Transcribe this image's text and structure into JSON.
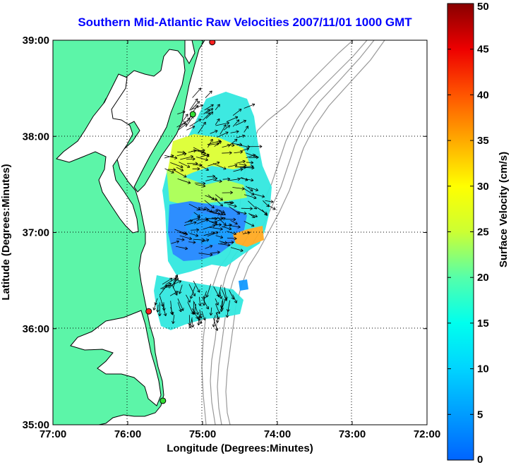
{
  "title": "Southern Mid-Atlantic Raw Velocities 2007/11/01 1000 GMT",
  "map": {
    "x_label": "Longitude (Degrees:Minutes)",
    "y_label": "Latitude (Degrees:Minutes)",
    "lon_range": [
      -77,
      -72
    ],
    "lat_range": [
      35,
      39
    ],
    "x_ticks": [
      {
        "value": -77,
        "label": "77:00"
      },
      {
        "value": -76,
        "label": "76:00"
      },
      {
        "value": -75,
        "label": "75:00"
      },
      {
        "value": -74,
        "label": "74:00"
      },
      {
        "value": -73,
        "label": "73:00"
      },
      {
        "value": -72,
        "label": "72:00"
      }
    ],
    "y_ticks": [
      {
        "value": 39,
        "label": "39:00"
      },
      {
        "value": 38,
        "label": "38:00"
      },
      {
        "value": 37,
        "label": "37:00"
      },
      {
        "value": 36,
        "label": "36:00"
      },
      {
        "value": 35,
        "label": "35:00"
      }
    ],
    "grid": "dotted",
    "land_color": "#5cf5a8",
    "coast_color": "#000000",
    "bathymetry_color": "#999999",
    "stations": [
      {
        "lon": -74.87,
        "lat": 38.98,
        "color": "#ff2020"
      },
      {
        "lon": -75.13,
        "lat": 38.23,
        "color": "#33dd33"
      },
      {
        "lon": -75.72,
        "lat": 36.18,
        "color": "#ff2020"
      },
      {
        "lon": -75.53,
        "lat": 35.25,
        "color": "#33dd33"
      }
    ]
  },
  "colorbar": {
    "label": "Surface Velocity (cm/s)",
    "min": 0,
    "max": 50,
    "ticks": [
      {
        "value": 50,
        "label": "50"
      },
      {
        "value": 45,
        "label": "45"
      },
      {
        "value": 40,
        "label": "40"
      },
      {
        "value": 35,
        "label": "35"
      },
      {
        "value": 30,
        "label": "30"
      },
      {
        "value": 25,
        "label": "25"
      },
      {
        "value": 20,
        "label": "20"
      },
      {
        "value": 15,
        "label": "15"
      },
      {
        "value": 10,
        "label": "10"
      },
      {
        "value": 5,
        "label": "5"
      },
      {
        "value": 0,
        "label": "0"
      }
    ],
    "colors": [
      "#0064ff",
      "#00aaff",
      "#00ffff",
      "#55ffaa",
      "#aaff55",
      "#ffff00",
      "#ffaa00",
      "#ff5500",
      "#ff0000",
      "#aa0000"
    ]
  }
}
